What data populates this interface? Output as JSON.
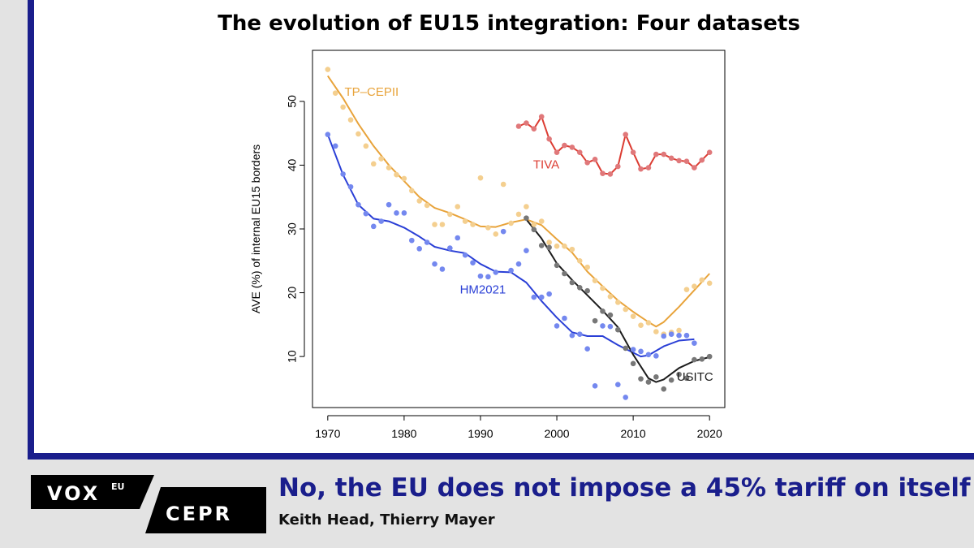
{
  "chart_data": {
    "type": "scatter",
    "title": "The evolution of EU15 integration: Four datasets",
    "xlabel": "",
    "ylabel": "AVE (%) of internal EU15 borders",
    "xlim": [
      1968,
      2022
    ],
    "ylim": [
      2,
      58
    ],
    "xticks": [
      1970,
      1980,
      1990,
      2000,
      2010,
      2020
    ],
    "yticks": [
      10,
      20,
      30,
      40,
      50
    ],
    "grid": false,
    "series": [
      {
        "name": "TP–CEPII",
        "color": "#e8a33a",
        "point_color": "#f4cf8f",
        "label_at": [
          1972.2,
          50.9
        ],
        "points": [
          [
            1970,
            55
          ],
          [
            1971,
            51.3
          ],
          [
            1972,
            49.1
          ],
          [
            1973,
            47.1
          ],
          [
            1974,
            44.9
          ],
          [
            1975,
            43
          ],
          [
            1976,
            40.2
          ],
          [
            1977,
            41
          ],
          [
            1978,
            39.6
          ],
          [
            1979,
            38.5
          ],
          [
            1980,
            37.9
          ],
          [
            1981,
            36
          ],
          [
            1982,
            34.4
          ],
          [
            1983,
            33.7
          ],
          [
            1984,
            30.7
          ],
          [
            1985,
            30.7
          ],
          [
            1986,
            32.3
          ],
          [
            1987,
            33.5
          ],
          [
            1988,
            31.2
          ],
          [
            1989,
            30.7
          ],
          [
            1990,
            38
          ],
          [
            1991,
            30.2
          ],
          [
            1992,
            29.2
          ],
          [
            1993,
            37
          ],
          [
            1994,
            30.9
          ],
          [
            1995,
            32.3
          ],
          [
            1996,
            33.5
          ],
          [
            1997,
            30.7
          ],
          [
            1998,
            31.2
          ],
          [
            1999,
            27.9
          ],
          [
            2000,
            27.3
          ],
          [
            2001,
            27.3
          ],
          [
            2002,
            26.8
          ],
          [
            2003,
            25
          ],
          [
            2004,
            24
          ],
          [
            2005,
            21.9
          ],
          [
            2006,
            20.7
          ],
          [
            2007,
            19.4
          ],
          [
            2008,
            18.5
          ],
          [
            2009,
            17.4
          ],
          [
            2010,
            16.3
          ],
          [
            2011,
            14.9
          ],
          [
            2012,
            15.3
          ],
          [
            2013,
            13.9
          ],
          [
            2014,
            13.5
          ],
          [
            2015,
            13.8
          ],
          [
            2016,
            14.1
          ],
          [
            2017,
            20.5
          ],
          [
            2018,
            21
          ],
          [
            2019,
            22
          ],
          [
            2020,
            21.5
          ]
        ],
        "trend": [
          [
            1970,
            54
          ],
          [
            1972,
            50.5
          ],
          [
            1974,
            46.5
          ],
          [
            1976,
            43
          ],
          [
            1978,
            40
          ],
          [
            1980,
            37.5
          ],
          [
            1982,
            35
          ],
          [
            1984,
            33.3
          ],
          [
            1986,
            32.5
          ],
          [
            1988,
            31.5
          ],
          [
            1990,
            30.4
          ],
          [
            1992,
            30.3
          ],
          [
            1994,
            31
          ],
          [
            1996,
            31.5
          ],
          [
            1998,
            30.6
          ],
          [
            2000,
            28.4
          ],
          [
            2002,
            26.3
          ],
          [
            2004,
            23.3
          ],
          [
            2006,
            21
          ],
          [
            2008,
            18.8
          ],
          [
            2010,
            17
          ],
          [
            2012,
            15.4
          ],
          [
            2013,
            14.7
          ],
          [
            2014,
            15.4
          ],
          [
            2016,
            17.8
          ],
          [
            2018,
            20.4
          ],
          [
            2020,
            23
          ]
        ]
      },
      {
        "name": "TIVA",
        "color": "#dc3c32",
        "point_color": "#e0787a",
        "label_at": [
          1996.9,
          39.5
        ],
        "points": [
          [
            1995,
            46.1
          ],
          [
            1996,
            46.6
          ],
          [
            1997,
            45.7
          ],
          [
            1998,
            47.6
          ],
          [
            1999,
            44.1
          ],
          [
            2000,
            42
          ],
          [
            2001,
            43.1
          ],
          [
            2002,
            42.8
          ],
          [
            2003,
            42
          ],
          [
            2004,
            40.4
          ],
          [
            2005,
            40.9
          ],
          [
            2006,
            38.7
          ],
          [
            2007,
            38.6
          ],
          [
            2008,
            39.8
          ],
          [
            2009,
            44.8
          ],
          [
            2010,
            42
          ],
          [
            2011,
            39.4
          ],
          [
            2012,
            39.6
          ],
          [
            2013,
            41.7
          ],
          [
            2014,
            41.7
          ],
          [
            2015,
            41.1
          ],
          [
            2016,
            40.7
          ],
          [
            2017,
            40.6
          ],
          [
            2018,
            39.6
          ],
          [
            2019,
            40.8
          ],
          [
            2020,
            42
          ]
        ]
      },
      {
        "name": "HM2021",
        "color": "#2a3fd6",
        "point_color": "#7488ef",
        "label_at": [
          1987.3,
          19.9
        ],
        "points": [
          [
            1970,
            44.8
          ],
          [
            1971,
            43
          ],
          [
            1972,
            38.6
          ],
          [
            1973,
            36.6
          ],
          [
            1974,
            33.8
          ],
          [
            1975,
            32.4
          ],
          [
            1976,
            30.4
          ],
          [
            1977,
            31.2
          ],
          [
            1978,
            33.8
          ],
          [
            1979,
            32.5
          ],
          [
            1980,
            32.5
          ],
          [
            1981,
            28.2
          ],
          [
            1982,
            26.9
          ],
          [
            1983,
            27.9
          ],
          [
            1984,
            24.5
          ],
          [
            1985,
            23.7
          ],
          [
            1986,
            27
          ],
          [
            1987,
            28.6
          ],
          [
            1988,
            25.9
          ],
          [
            1989,
            24.7
          ],
          [
            1990,
            22.6
          ],
          [
            1991,
            22.5
          ],
          [
            1992,
            23.2
          ],
          [
            1993,
            29.6
          ],
          [
            1994,
            23.5
          ],
          [
            1995,
            24.5
          ],
          [
            1996,
            26.6
          ],
          [
            1997,
            19.3
          ],
          [
            1998,
            19.3
          ],
          [
            1999,
            19.8
          ],
          [
            2000,
            14.8
          ],
          [
            2001,
            16
          ],
          [
            2002,
            13.3
          ],
          [
            2003,
            13.5
          ],
          [
            2004,
            11.2
          ],
          [
            2005,
            5.4
          ],
          [
            2006,
            14.8
          ],
          [
            2007,
            14.7
          ],
          [
            2008,
            5.6
          ],
          [
            2009,
            3.6
          ],
          [
            2010,
            11.1
          ],
          [
            2011,
            10.8
          ],
          [
            2012,
            10.3
          ],
          [
            2013,
            10.1
          ],
          [
            2014,
            13.2
          ],
          [
            2015,
            13.5
          ],
          [
            2016,
            13.3
          ],
          [
            2017,
            13.3
          ],
          [
            2018,
            12.1
          ]
        ],
        "trend": [
          [
            1970,
            44.8
          ],
          [
            1972,
            38.5
          ],
          [
            1974,
            33.8
          ],
          [
            1976,
            31.6
          ],
          [
            1978,
            31.2
          ],
          [
            1980,
            30.2
          ],
          [
            1982,
            28.8
          ],
          [
            1984,
            27.2
          ],
          [
            1986,
            26.6
          ],
          [
            1988,
            26.2
          ],
          [
            1990,
            24.5
          ],
          [
            1992,
            23.3
          ],
          [
            1994,
            23.2
          ],
          [
            1996,
            21.6
          ],
          [
            1998,
            18.7
          ],
          [
            2000,
            16.1
          ],
          [
            2002,
            13.8
          ],
          [
            2004,
            13.2
          ],
          [
            2006,
            13.2
          ],
          [
            2008,
            11.8
          ],
          [
            2010,
            10.6
          ],
          [
            2011,
            10
          ],
          [
            2012,
            10.2
          ],
          [
            2014,
            11.6
          ],
          [
            2016,
            12.5
          ],
          [
            2018,
            12.7
          ]
        ]
      },
      {
        "name": "USITC",
        "color": "#1c1c1c",
        "point_color": "#777777",
        "label_at": [
          2015.7,
          6.2
        ],
        "points": [
          [
            1996,
            31.7
          ],
          [
            1997,
            29.9
          ],
          [
            1998,
            27.4
          ],
          [
            1999,
            27.1
          ],
          [
            2000,
            24.3
          ],
          [
            2001,
            23
          ],
          [
            2002,
            21.6
          ],
          [
            2003,
            20.8
          ],
          [
            2004,
            20.3
          ],
          [
            2005,
            15.6
          ],
          [
            2006,
            17.1
          ],
          [
            2007,
            16.5
          ],
          [
            2008,
            14.2
          ],
          [
            2009,
            11.3
          ],
          [
            2010,
            8.9
          ],
          [
            2011,
            6.5
          ],
          [
            2012,
            6
          ],
          [
            2013,
            6.8
          ],
          [
            2014,
            4.9
          ],
          [
            2015,
            6.3
          ],
          [
            2016,
            7.2
          ],
          [
            2017,
            6.6
          ],
          [
            2018,
            9.5
          ],
          [
            2019,
            9.6
          ],
          [
            2020,
            10
          ]
        ],
        "trend": [
          [
            1996,
            31.5
          ],
          [
            1998,
            28.5
          ],
          [
            2000,
            24.6
          ],
          [
            2002,
            22
          ],
          [
            2004,
            19.6
          ],
          [
            2006,
            17.2
          ],
          [
            2008,
            14.6
          ],
          [
            2010,
            10.3
          ],
          [
            2012,
            6.6
          ],
          [
            2013,
            6
          ],
          [
            2014,
            6.4
          ],
          [
            2016,
            8.2
          ],
          [
            2018,
            9.3
          ],
          [
            2020,
            9.9
          ]
        ]
      }
    ]
  },
  "header": {
    "title": "The evolution of EU15 integration: Four datasets"
  },
  "footer": {
    "logo": {
      "vox": "VOX",
      "eu": "EU",
      "cepr": "CEPR"
    },
    "headline": "No, the EU does not impose a 45% tariff on itself",
    "authors": "Keith Head, Thierry Mayer"
  }
}
